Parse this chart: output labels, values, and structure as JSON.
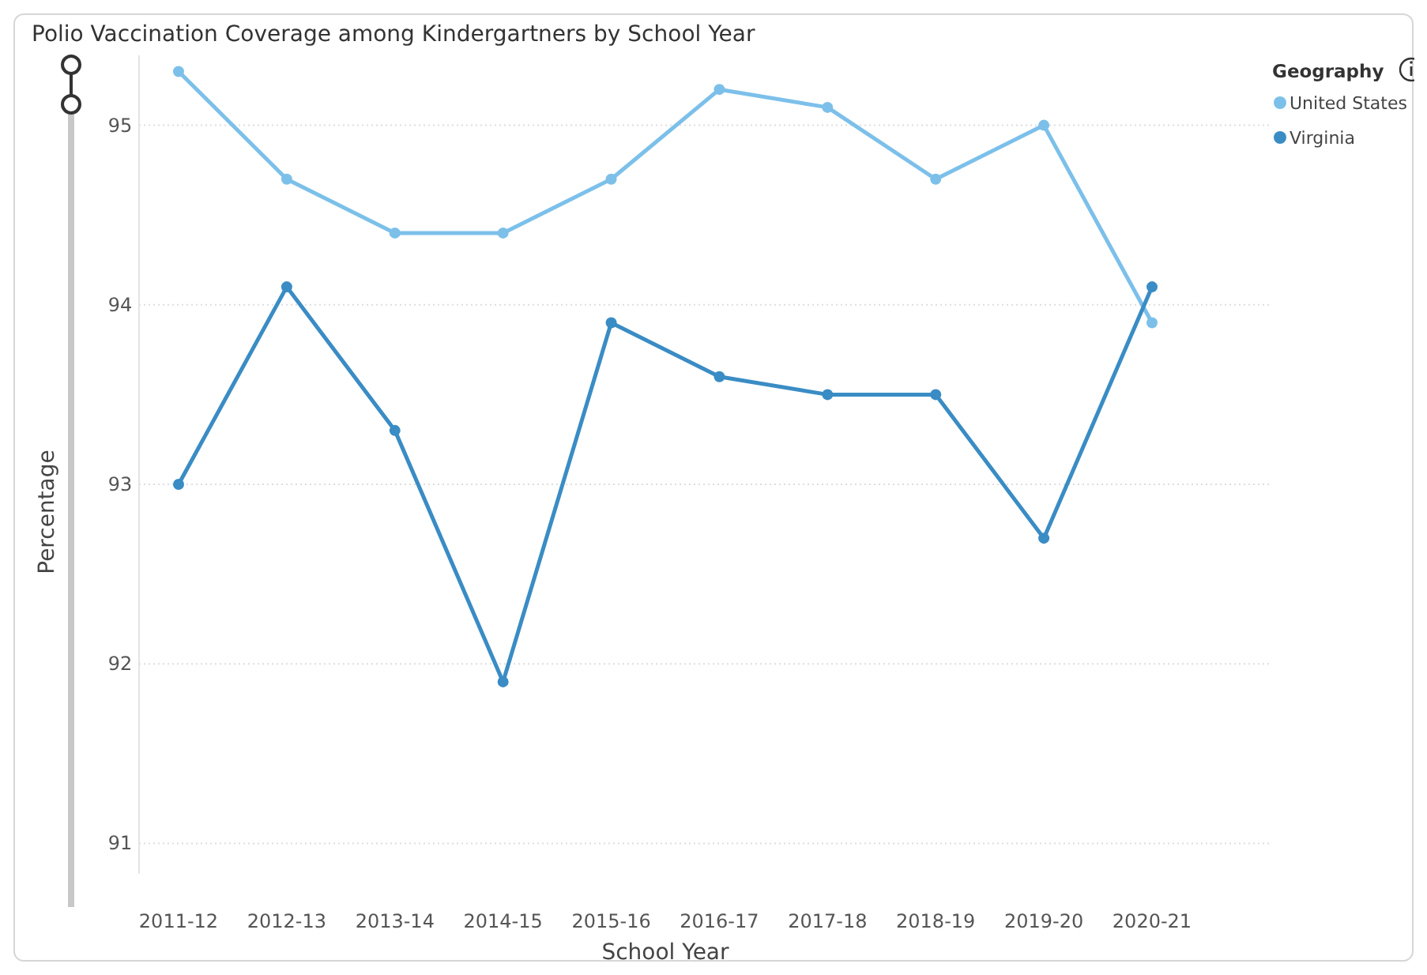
{
  "chart_data": {
    "type": "line",
    "title": "Polio Vaccination Coverage among Kindergartners by School Year",
    "xlabel": "School Year",
    "ylabel": "Percentage",
    "legend_title": "Geography",
    "categories": [
      "2011-12",
      "2012-13",
      "2013-14",
      "2014-15",
      "2015-16",
      "2016-17",
      "2017-18",
      "2018-19",
      "2019-20",
      "2020-21"
    ],
    "series": [
      {
        "name": "United States",
        "color": "#7cc0ea",
        "values": [
          95.3,
          94.7,
          94.4,
          94.4,
          94.7,
          95.2,
          95.1,
          94.7,
          95.0,
          93.9
        ]
      },
      {
        "name": "Virginia",
        "color": "#3a8cc4",
        "values": [
          93.0,
          94.1,
          93.3,
          91.9,
          93.9,
          93.6,
          93.5,
          93.5,
          92.7,
          94.1
        ]
      }
    ],
    "ylim": [
      90.83,
      95.39
    ],
    "yticks": [
      91,
      92,
      93,
      94,
      95
    ],
    "grid": "y",
    "legend": "top right",
    "marker": "circle",
    "line_style": "solid"
  }
}
